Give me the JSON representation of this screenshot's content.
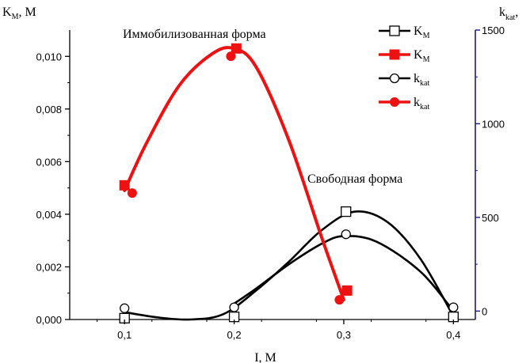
{
  "chart_data": {
    "type": "scatter",
    "xlabel": "I, M",
    "ylabel_left": "K",
    "ylabel_left_sub": "M",
    "ylabel_left_unit": ", M",
    "ylabel_right": "k",
    "ylabel_right_sub": "kat",
    "ylabel_right_tail": ",",
    "x_ticks": [
      "0,1",
      "0,2",
      "0,3",
      "0,4"
    ],
    "x_tick_values": [
      0.1,
      0.2,
      0.3,
      0.4
    ],
    "xlim": [
      0.05,
      0.42
    ],
    "y_left_ticks": [
      "0,000",
      "0,002",
      "0,004",
      "0,006",
      "0,008",
      "0,010"
    ],
    "y_left_tick_values": [
      0,
      0.002,
      0.004,
      0.006,
      0.008,
      0.01
    ],
    "ylim_left": [
      0,
      0.011
    ],
    "y_right_ticks": [
      "0",
      "500",
      "1000",
      "1500"
    ],
    "y_right_tick_values": [
      0,
      500,
      1000,
      1500
    ],
    "ylim_right": [
      -45,
      1500
    ],
    "annotations": [
      {
        "text": "Иммобилизованная форма",
        "series": "immobilized"
      },
      {
        "text": "Свободная форма",
        "series": "free"
      }
    ],
    "legend_position": "top-right",
    "colors": {
      "free": "#000000",
      "immobilized": "#ee1111",
      "right_axis": "#1a1a8c"
    },
    "series": [
      {
        "id": "free_km",
        "label": "K",
        "sub": "M",
        "axis": "left",
        "group": "free",
        "marker": "open-square",
        "x": [
          0.1,
          0.2,
          0.302,
          0.4
        ],
        "y": [
          5e-05,
          0.0001,
          0.0041,
          0.0001
        ]
      },
      {
        "id": "imm_km",
        "label": "K",
        "sub": "M",
        "axis": "left",
        "group": "immobilized",
        "marker": "filled-square",
        "x": [
          0.1,
          0.202,
          0.303
        ],
        "y": [
          0.0051,
          0.0103,
          0.0011
        ]
      },
      {
        "id": "free_kkat",
        "label": "k",
        "sub": "kat",
        "axis": "right",
        "group": "free",
        "marker": "open-circle",
        "x": [
          0.1,
          0.2,
          0.302,
          0.4
        ],
        "y": [
          15,
          20,
          410,
          20
        ]
      },
      {
        "id": "imm_kkat",
        "label": "k",
        "sub": "kat",
        "axis": "right",
        "group": "immobilized",
        "marker": "filled-circle",
        "x": [
          0.107,
          0.197,
          0.296
        ],
        "y": [
          630,
          1360,
          60
        ]
      }
    ],
    "fit_curves": [
      {
        "group": "free",
        "axis": "left",
        "x": [
          0.1,
          0.13,
          0.16,
          0.19,
          0.22,
          0.25,
          0.28,
          0.31,
          0.34,
          0.37,
          0.4
        ],
        "y": [
          0.00028,
          8e-05,
          0.0,
          0.0002,
          0.0011,
          0.0022,
          0.0034,
          0.0041,
          0.0037,
          0.0023,
          0.00012
        ]
      },
      {
        "group": "free",
        "axis": "right",
        "x": [
          0.2,
          0.22,
          0.25,
          0.28,
          0.3,
          0.33,
          0.37,
          0.4
        ],
        "y": [
          40,
          120,
          250,
          360,
          400,
          370,
          210,
          0
        ]
      },
      {
        "group": "immobilized",
        "axis": "left",
        "x": [
          0.1,
          0.12,
          0.15,
          0.18,
          0.2,
          0.22,
          0.25,
          0.28,
          0.3
        ],
        "y": [
          0.0049,
          0.0067,
          0.0089,
          0.0101,
          0.0103,
          0.0096,
          0.0068,
          0.0031,
          0.00075
        ]
      }
    ]
  }
}
